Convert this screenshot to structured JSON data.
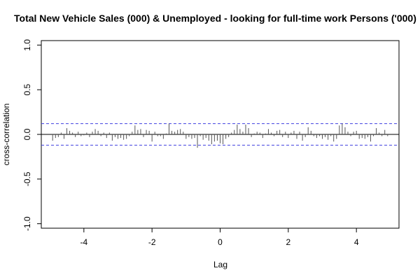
{
  "chart_data": {
    "type": "bar",
    "title": "Total New Vehicle Sales (000) & Unemployed - looking for full-time work Persons ('000)",
    "xlabel": "Lag",
    "ylabel": "cross-correlation",
    "xlim": [
      -5.25,
      5.25
    ],
    "ylim": [
      -1.05,
      1.05
    ],
    "x_ticks": [
      -4,
      -2,
      0,
      2,
      4
    ],
    "x_tick_labels": [
      "-4",
      "-2",
      "0",
      "2",
      "4"
    ],
    "y_ticks": [
      -1.0,
      -0.5,
      0.0,
      0.5,
      1.0
    ],
    "y_tick_labels": [
      "-1.0",
      "-0.5",
      "0.0",
      "0.5",
      "1.0"
    ],
    "confidence_bounds": [
      0.12,
      -0.12
    ],
    "zero_line": true,
    "series": [
      {
        "lags": [
          -4.917,
          -4.833,
          -4.75,
          -4.667,
          -4.583,
          -4.5,
          -4.417,
          -4.333,
          -4.25,
          -4.167,
          -4.083,
          -4.0,
          -3.917,
          -3.833,
          -3.75,
          -3.667,
          -3.583,
          -3.5,
          -3.417,
          -3.333,
          -3.25,
          -3.167,
          -3.083,
          -3.0,
          -2.917,
          -2.833,
          -2.75,
          -2.667,
          -2.583,
          -2.5,
          -2.417,
          -2.333,
          -2.25,
          -2.167,
          -2.083,
          -2.0,
          -1.917,
          -1.833,
          -1.75,
          -1.667,
          -1.583,
          -1.5,
          -1.417,
          -1.333,
          -1.25,
          -1.167,
          -1.083,
          -1.0,
          -0.917,
          -0.833,
          -0.75,
          -0.667,
          -0.583,
          -0.5,
          -0.417,
          -0.333,
          -0.25,
          -0.167,
          -0.083,
          0.0,
          0.083,
          0.167,
          0.25,
          0.333,
          0.417,
          0.5,
          0.583,
          0.667,
          0.75,
          0.833,
          0.917,
          1.0,
          1.083,
          1.167,
          1.25,
          1.333,
          1.417,
          1.5,
          1.583,
          1.667,
          1.75,
          1.833,
          1.917,
          2.0,
          2.083,
          2.167,
          2.25,
          2.333,
          2.417,
          2.5,
          2.583,
          2.667,
          2.75,
          2.833,
          2.917,
          3.0,
          3.083,
          3.167,
          3.25,
          3.333,
          3.417,
          3.5,
          3.583,
          3.667,
          3.75,
          3.833,
          3.917,
          4.0,
          4.083,
          4.167,
          4.25,
          4.333,
          4.417,
          4.5,
          4.583,
          4.667,
          4.75,
          4.833,
          4.917
        ],
        "values": [
          -0.07,
          -0.04,
          -0.03,
          0.02,
          -0.05,
          0.07,
          0.04,
          0.02,
          -0.03,
          0.03,
          -0.02,
          -0.01,
          0.02,
          -0.03,
          0.03,
          0.06,
          0.04,
          -0.02,
          0.02,
          -0.04,
          0.02,
          -0.07,
          -0.03,
          -0.05,
          -0.04,
          -0.06,
          -0.05,
          -0.02,
          0.03,
          0.1,
          0.05,
          0.06,
          -0.03,
          0.05,
          0.04,
          -0.08,
          0.03,
          -0.02,
          -0.02,
          -0.05,
          0.01,
          0.12,
          0.04,
          0.03,
          0.05,
          0.06,
          0.03,
          -0.05,
          -0.03,
          -0.05,
          -0.04,
          -0.15,
          -0.02,
          -0.06,
          -0.04,
          -0.07,
          -0.11,
          -0.08,
          -0.07,
          -0.1,
          -0.11,
          -0.05,
          -0.03,
          0.02,
          0.05,
          0.11,
          0.06,
          0.03,
          0.11,
          0.07,
          -0.03,
          0.01,
          0.03,
          0.02,
          -0.04,
          0.01,
          0.06,
          0.02,
          -0.02,
          0.04,
          0.05,
          -0.03,
          0.03,
          -0.04,
          0.02,
          0.04,
          -0.05,
          0.03,
          -0.07,
          -0.03,
          0.08,
          0.04,
          -0.02,
          -0.04,
          -0.02,
          -0.05,
          -0.03,
          -0.06,
          -0.02,
          -0.08,
          -0.05,
          0.1,
          0.12,
          0.08,
          0.03,
          -0.02,
          0.03,
          0.04,
          -0.05,
          -0.04,
          -0.05,
          -0.03,
          -0.08,
          -0.02,
          0.07,
          0.02,
          -0.02,
          0.05,
          -0.02
        ]
      }
    ]
  }
}
